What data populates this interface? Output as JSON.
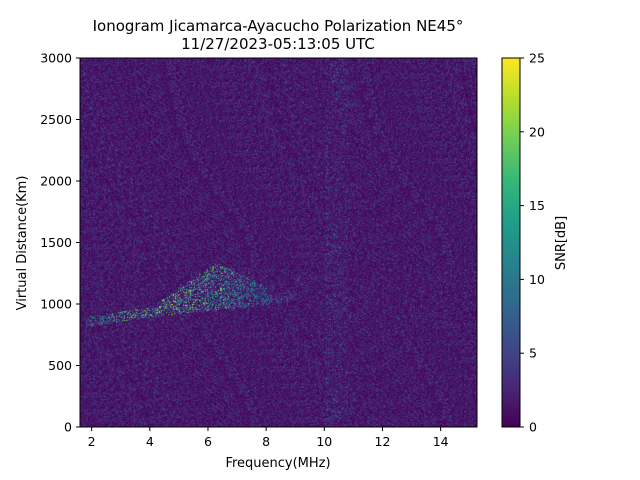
{
  "chart_data": {
    "type": "heatmap",
    "title": "Ionogram Jicamarca-Ayacucho Polarization NE45°",
    "subtitle": "11/27/2023-05:13:05 UTC",
    "xlabel": "Frequency(MHz)",
    "ylabel": "Virtual Distance(Km)",
    "xlim": [
      1.6,
      15.25
    ],
    "ylim": [
      0,
      3000
    ],
    "xticks": [
      2,
      4,
      6,
      8,
      10,
      12,
      14
    ],
    "xtick_labels": [
      "2",
      "4",
      "6",
      "8",
      "10",
      "12",
      "14"
    ],
    "yticks": [
      0,
      500,
      1000,
      1500,
      2000,
      2500,
      3000
    ],
    "ytick_labels": [
      "0",
      "500",
      "1000",
      "1500",
      "2000",
      "2500",
      "3000"
    ],
    "colorbar": {
      "label": "SNR[dB]",
      "colormap": "viridis",
      "range": [
        0,
        25
      ],
      "ticks": [
        0,
        5,
        10,
        15,
        20,
        25
      ],
      "tick_labels": [
        "0",
        "5",
        "10",
        "15",
        "20",
        "25"
      ]
    },
    "echo_trace": {
      "frequency_mhz": [
        1.8,
        2.5,
        3.5,
        4.5,
        5.5,
        6.5,
        7.5,
        8.5,
        9.0
      ],
      "virtual_distance_km": [
        860,
        880,
        920,
        950,
        980,
        1000,
        1020,
        1050,
        1080
      ],
      "peak_snr_db": [
        15,
        20,
        22,
        25,
        22,
        20,
        15,
        10,
        6
      ]
    },
    "interference_band_mhz": [
      10.0,
      10.8
    ],
    "grid": false
  }
}
